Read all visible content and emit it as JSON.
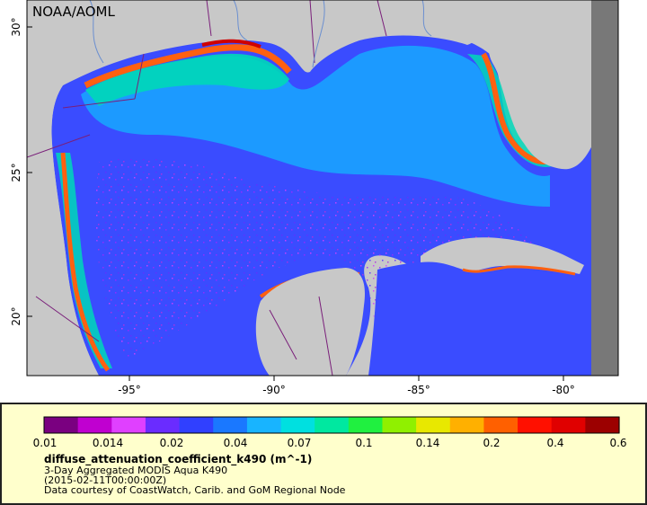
{
  "credit_label": "NOAA/AOML",
  "latitude_ticks": [
    "30°",
    "25°",
    "20°"
  ],
  "longitude_ticks": [
    "-95°",
    "-90°",
    "-85°",
    "-80°"
  ],
  "legend": {
    "colorbar_ticks": [
      "0.01",
      "0.014",
      "0.02",
      "0.04",
      "0.07",
      "0.1",
      "0.14",
      "0.2",
      "0.4",
      "0.6"
    ],
    "colorbar_colors": [
      "#7a0080",
      "#c000d0",
      "#e040ff",
      "#6a2cff",
      "#3040ff",
      "#1a78ff",
      "#18b4ff",
      "#00e0e0",
      "#00e8a0",
      "#20f040",
      "#90f000",
      "#e8e800",
      "#ffb000",
      "#ff6000",
      "#ff1000",
      "#e00000",
      "#9c0000"
    ],
    "variable": "diffuse_attenuation_coefficient_k490 (m^-1)",
    "product": "3-Day Aggregated MODIS Aqua K490",
    "timestamp": "(2015-02-11T00:00:00Z)",
    "courtesy": "Data courtesy of CoastWatch, Carib. and GoM Regional Node"
  },
  "colors": {
    "land": "#c8c8c8",
    "nodata": "#787878",
    "deep_water": "#3a4cff",
    "offshore": "#18a8ff",
    "shelf": "#00d8b8",
    "coastal": "#ff6010",
    "nearshore": "#d00000",
    "border": "#7a1f7a",
    "river": "#6b8fd0"
  }
}
